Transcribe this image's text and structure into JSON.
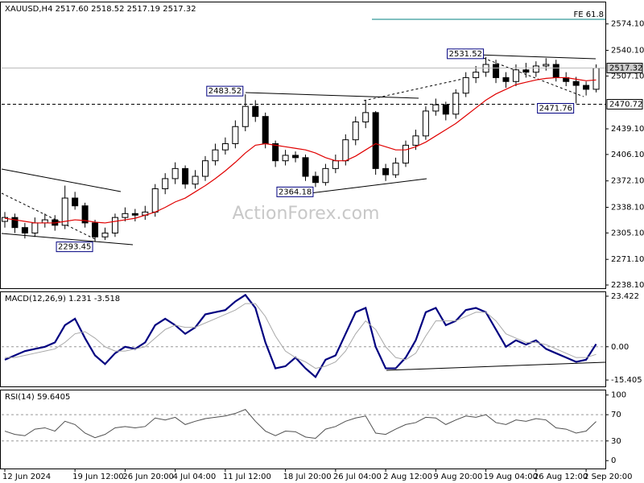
{
  "chart_data": [
    {
      "type": "candlestick",
      "title": "XAUUSD,H4 2517.60 2518.52 2517.19 2517.32",
      "categories": [
        "12 Jun 2024",
        null,
        null,
        null,
        null,
        null,
        null,
        "19 Jun 12:00",
        null,
        null,
        null,
        null,
        "26 Jun 20:00",
        null,
        null,
        null,
        null,
        "4 Jul 04:00",
        null,
        null,
        null,
        null,
        "11 Jul 12:00",
        null,
        null,
        null,
        null,
        null,
        "18 Jul 20:00",
        null,
        null,
        null,
        null,
        "26 Jul 04:00",
        null,
        null,
        null,
        null,
        "2 Aug 12:00",
        null,
        null,
        null,
        null,
        "9 Aug 20:00",
        null,
        null,
        null,
        null,
        "19 Aug 04:00",
        null,
        null,
        null,
        null,
        "26 Aug 12:00",
        null,
        null,
        null,
        null,
        "2 Sep 20:00",
        null
      ],
      "open": [
        2320,
        2325,
        2312,
        2305,
        2318,
        2322,
        2315,
        2350,
        2340,
        2318,
        2300,
        2305,
        2325,
        2330,
        2328,
        2332,
        2362,
        2375,
        2388,
        2368,
        2378,
        2398,
        2412,
        2420,
        2442,
        2468,
        2455,
        2420,
        2398,
        2405,
        2402,
        2378,
        2370,
        2388,
        2398,
        2425,
        2448,
        2460,
        2388,
        2380,
        2395,
        2418,
        2430,
        2462,
        2470,
        2458,
        2485,
        2505,
        2512,
        2522,
        2505,
        2500,
        2515,
        2512,
        2520,
        2522,
        2505,
        2500,
        2495,
        2490
      ],
      "high": [
        2332,
        2330,
        2318,
        2325,
        2330,
        2328,
        2366,
        2358,
        2344,
        2322,
        2312,
        2330,
        2338,
        2336,
        2340,
        2368,
        2382,
        2396,
        2392,
        2386,
        2404,
        2420,
        2428,
        2450,
        2483.52,
        2476,
        2460,
        2424,
        2412,
        2410,
        2406,
        2384,
        2394,
        2406,
        2432,
        2455,
        2476,
        2462,
        2394,
        2402,
        2424,
        2438,
        2468,
        2478,
        2474,
        2490,
        2512,
        2520,
        2531.52,
        2528,
        2512,
        2522,
        2524,
        2526,
        2530,
        2528,
        2512,
        2506,
        2500,
        2522
      ],
      "low": [
        2312,
        2305,
        2298,
        2300,
        2312,
        2308,
        2310,
        2335,
        2312,
        2293.45,
        2296,
        2300,
        2320,
        2320,
        2322,
        2326,
        2355,
        2368,
        2362,
        2362,
        2372,
        2392,
        2406,
        2414,
        2436,
        2448,
        2414,
        2390,
        2392,
        2396,
        2372,
        2364.18,
        2366,
        2382,
        2392,
        2418,
        2440,
        2380,
        2372,
        2376,
        2390,
        2412,
        2425,
        2456,
        2450,
        2452,
        2480,
        2498,
        2506,
        2498,
        2492,
        2494,
        2505,
        2506,
        2514,
        2500,
        2494,
        2471.76,
        2482,
        2486
      ],
      "close": [
        2325,
        2312,
        2305,
        2318,
        2322,
        2315,
        2350,
        2340,
        2318,
        2300,
        2305,
        2325,
        2330,
        2328,
        2332,
        2362,
        2375,
        2388,
        2368,
        2378,
        2398,
        2412,
        2420,
        2442,
        2468,
        2455,
        2420,
        2398,
        2405,
        2402,
        2378,
        2370,
        2388,
        2398,
        2425,
        2448,
        2460,
        2388,
        2380,
        2395,
        2418,
        2430,
        2462,
        2470,
        2458,
        2485,
        2505,
        2512,
        2522,
        2505,
        2500,
        2515,
        2512,
        2520,
        2522,
        2505,
        2500,
        2495,
        2490,
        2517.32
      ],
      "overlay": {
        "color": "#e00000",
        "values": [
          2324,
          2322,
          2320,
          2318,
          2318,
          2318,
          2320,
          2322,
          2321,
          2319,
          2318,
          2320,
          2322,
          2324,
          2328,
          2332,
          2338,
          2345,
          2350,
          2358,
          2366,
          2375,
          2385,
          2396,
          2408,
          2418,
          2420,
          2418,
          2416,
          2414,
          2412,
          2408,
          2402,
          2398,
          2398,
          2404,
          2412,
          2420,
          2416,
          2412,
          2412,
          2416,
          2422,
          2430,
          2438,
          2446,
          2456,
          2466,
          2476,
          2484,
          2490,
          2496,
          2499,
          2502,
          2504,
          2505,
          2505,
          2503,
          2501,
          2502
        ]
      },
      "price_labels": [
        2517.32,
        2470.72
      ],
      "annotations": [
        2531.52,
        2483.52,
        2364.18,
        2293.45,
        2471.76
      ],
      "fe": {
        "label": "FE 61.8",
        "value": 2580
      },
      "watermark": "ActionForex.com",
      "ylim": [
        2234,
        2601.8
      ],
      "yticks": [
        {
          "value": 2238.1,
          "label": "2238.10"
        },
        {
          "value": 2271.1,
          "label": "2271.10"
        },
        {
          "value": 2305.1,
          "label": "2305.10"
        },
        {
          "value": 2338.1,
          "label": "2338.10"
        },
        {
          "value": 2372.1,
          "label": "2372.10"
        },
        {
          "value": 2406.1,
          "label": "2406.10"
        },
        {
          "value": 2439.1,
          "label": "2439.10"
        },
        {
          "value": 2507.1,
          "label": "2507.10"
        },
        {
          "value": 2540.1,
          "label": "2540.10"
        },
        {
          "value": 2574.1,
          "label": "2574.10"
        }
      ]
    },
    {
      "type": "line",
      "title": "MACD(12,26,9) 1.231 -3.518",
      "series": [
        {
          "color": "#000080",
          "values": [
            -6,
            -4,
            -2,
            -1,
            0,
            2,
            10,
            13,
            4,
            -4,
            -8,
            -3,
            0,
            -1,
            2,
            10,
            13,
            10,
            6,
            9,
            15,
            16,
            17,
            21,
            24,
            18,
            2,
            -10,
            -9,
            -5,
            -10,
            -14,
            -6,
            -4,
            6,
            16,
            18,
            0,
            -10,
            -10,
            -5,
            3,
            16,
            18,
            10,
            12,
            17,
            18,
            16,
            8,
            0,
            3,
            1,
            3,
            -1,
            -3,
            -5,
            -7,
            -6,
            1.231
          ]
        },
        {
          "color": "#a8a8a8",
          "values": [
            -5,
            -5,
            -4,
            -3,
            -2,
            -1,
            2,
            6,
            7,
            4,
            0,
            -2,
            -2,
            -1,
            0,
            4,
            8,
            10,
            9,
            9,
            11,
            13,
            15,
            17,
            20,
            20,
            14,
            5,
            -2,
            -5,
            -7,
            -10,
            -9,
            -7,
            -2,
            6,
            12,
            8,
            0,
            -5,
            -6,
            -3,
            5,
            12,
            12,
            12,
            14,
            16,
            16,
            12,
            6,
            4,
            2,
            2,
            1,
            -1,
            -3,
            -5,
            -5,
            -3.518
          ]
        }
      ],
      "ylim": [
        -18.36,
        25.27
      ],
      "yticks": [
        23.422,
        {
          "value": 0,
          "label": "0.00"
        },
        -15.405
      ]
    },
    {
      "type": "line",
      "title": "RSI(14) 59.6405",
      "series": [
        {
          "color": "#505050",
          "values": [
            45,
            40,
            38,
            48,
            50,
            45,
            60,
            55,
            42,
            35,
            40,
            50,
            52,
            50,
            52,
            65,
            62,
            66,
            55,
            60,
            64,
            66,
            68,
            72,
            78,
            60,
            45,
            38,
            45,
            44,
            36,
            34,
            48,
            52,
            60,
            65,
            68,
            42,
            40,
            48,
            55,
            58,
            66,
            65,
            55,
            62,
            68,
            66,
            70,
            58,
            55,
            62,
            60,
            64,
            62,
            50,
            48,
            42,
            45,
            59.6405
          ]
        }
      ],
      "ylim": [
        -12,
        107
      ],
      "yticks": [
        100,
        70,
        30,
        0
      ]
    }
  ]
}
